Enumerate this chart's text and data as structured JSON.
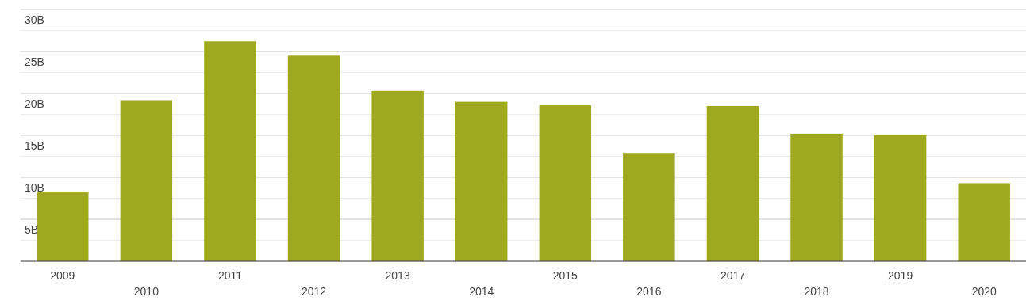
{
  "chart_data": {
    "type": "bar",
    "categories": [
      "2009",
      "2010",
      "2011",
      "2012",
      "2013",
      "2014",
      "2015",
      "2016",
      "2017",
      "2018",
      "2019",
      "2020"
    ],
    "values": [
      8.2,
      19.2,
      26.2,
      24.5,
      20.3,
      19.0,
      18.6,
      12.9,
      18.5,
      15.2,
      15.0,
      9.3
    ],
    "color": "#9fa920",
    "ylim": [
      0,
      30
    ],
    "yticks": [
      {
        "value": 0,
        "label": null
      },
      {
        "value": 2.5,
        "label": null
      },
      {
        "value": 5,
        "label": "5B"
      },
      {
        "value": 7.5,
        "label": null
      },
      {
        "value": 10,
        "label": "10B"
      },
      {
        "value": 12.5,
        "label": null
      },
      {
        "value": 15,
        "label": "15B"
      },
      {
        "value": 17.5,
        "label": null
      },
      {
        "value": 20,
        "label": "20B"
      },
      {
        "value": 22.5,
        "label": null
      },
      {
        "value": 25,
        "label": "25B"
      },
      {
        "value": 27.5,
        "label": null
      },
      {
        "value": 30,
        "label": "30B"
      }
    ],
    "grid": "y"
  }
}
